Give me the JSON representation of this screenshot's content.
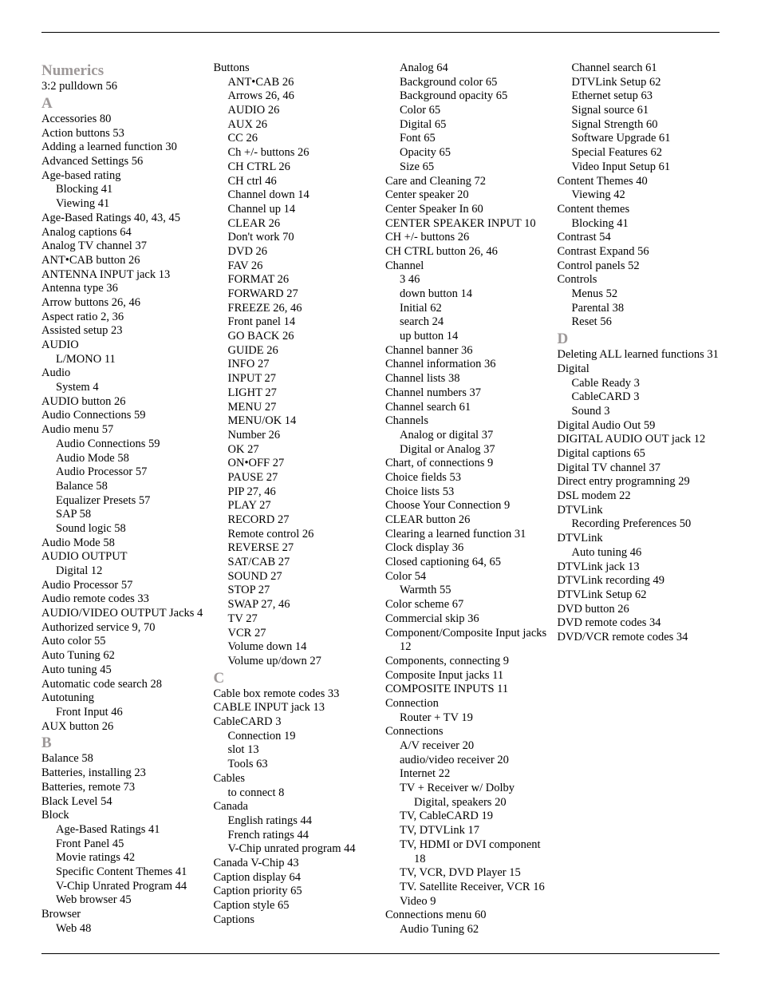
{
  "sections": [
    {
      "head": "Numerics",
      "lines": [
        {
          "t": "3:2 pulldown  56"
        }
      ]
    },
    {
      "head": "A",
      "lines": [
        {
          "t": "Accessories   80"
        },
        {
          "t": "Action buttons  53"
        },
        {
          "t": "Adding a learned function  30"
        },
        {
          "t": "Advanced Settings  56"
        },
        {
          "t": "Age-based rating"
        },
        {
          "t": "Blocking  41",
          "s": 1
        },
        {
          "t": "Viewing  41",
          "s": 1
        },
        {
          "t": "Age-Based Ratings  40, 43, 45"
        },
        {
          "t": "Analog captions  64"
        },
        {
          "t": "Analog TV channel  37"
        },
        {
          "t": "ANT•CAB button  26"
        },
        {
          "t": "ANTENNA INPUT jack  13"
        },
        {
          "t": "Antenna type  36"
        },
        {
          "t": "Arrow buttons  26, 46"
        },
        {
          "t": "Aspect ratio  2, 36"
        },
        {
          "t": "Assisted setup  23"
        },
        {
          "t": "AUDIO"
        },
        {
          "t": "L/MONO  11",
          "s": 1
        },
        {
          "t": "Audio"
        },
        {
          "t": "System  4",
          "s": 1
        },
        {
          "t": "AUDIO button  26"
        },
        {
          "t": "Audio Connections  59"
        },
        {
          "t": "Audio menu  57"
        },
        {
          "t": "Audio Connections  59",
          "s": 1
        },
        {
          "t": "Audio Mode  58",
          "s": 1
        },
        {
          "t": "Audio Processor  57",
          "s": 1
        },
        {
          "t": "Balance  58",
          "s": 1
        },
        {
          "t": "Equalizer Presets  57",
          "s": 1
        },
        {
          "t": "SAP  58",
          "s": 1
        },
        {
          "t": "Sound logic  58",
          "s": 1
        },
        {
          "t": "Audio Mode  58"
        },
        {
          "t": "AUDIO OUTPUT"
        },
        {
          "t": "Digital  12",
          "s": 1
        },
        {
          "t": "Audio Processor  57"
        },
        {
          "t": "Audio remote codes  33"
        },
        {
          "t": "AUDIO/VIDEO OUTPUT Jacks  4"
        },
        {
          "t": "Authorized service  9, 70"
        },
        {
          "t": "Auto color  55"
        },
        {
          "t": "Auto Tuning  62"
        },
        {
          "t": "Auto tuning  45"
        },
        {
          "t": "Automatic code search  28"
        },
        {
          "t": "Autotuning"
        },
        {
          "t": "Front Input  46",
          "s": 1
        },
        {
          "t": "AUX button  26"
        }
      ]
    },
    {
      "head": "B",
      "lines": [
        {
          "t": "Balance  58"
        },
        {
          "t": "Batteries, installing  23"
        },
        {
          "t": "Batteries, remote  73"
        },
        {
          "t": "Black Level  54"
        },
        {
          "t": "Block"
        },
        {
          "t": "Age-Based Ratings  41",
          "s": 1
        },
        {
          "t": "Front Panel  45",
          "s": 1
        },
        {
          "t": "Movie ratings  42",
          "s": 1
        },
        {
          "t": "Specific Content Themes  41",
          "s": 1
        },
        {
          "t": "V-Chip Unrated Program  44",
          "s": 1
        },
        {
          "t": "Web browser  45",
          "s": 1
        },
        {
          "t": "Browser"
        },
        {
          "t": "Web  48",
          "s": 1
        },
        {
          "t": "Buttons"
        },
        {
          "t": "ANT•CAB  26",
          "s": 1
        },
        {
          "t": "Arrows  26, 46",
          "s": 1
        },
        {
          "t": "AUDIO  26",
          "s": 1
        },
        {
          "t": "AUX  26",
          "s": 1
        },
        {
          "t": "CC  26",
          "s": 1
        },
        {
          "t": "Ch +/- buttons  26",
          "s": 1
        },
        {
          "t": "CH CTRL  26",
          "s": 1
        },
        {
          "t": "CH ctrl  46",
          "s": 1
        },
        {
          "t": "Channel down  14",
          "s": 1
        },
        {
          "t": "Channel up  14",
          "s": 1
        },
        {
          "t": "CLEAR  26",
          "s": 1
        },
        {
          "t": "Don't work  70",
          "s": 1
        },
        {
          "t": "DVD  26",
          "s": 1
        },
        {
          "t": "FAV  26",
          "s": 1
        },
        {
          "t": "FORMAT  26",
          "s": 1
        },
        {
          "t": "FORWARD  27",
          "s": 1
        },
        {
          "t": "FREEZE  26, 46",
          "s": 1
        },
        {
          "t": "Front panel  14",
          "s": 1
        },
        {
          "t": "GO BACK  26",
          "s": 1
        },
        {
          "t": "GUIDE  26",
          "s": 1
        },
        {
          "t": "INFO  27",
          "s": 1
        },
        {
          "t": "INPUT  27",
          "s": 1
        },
        {
          "t": "LIGHT  27",
          "s": 1
        },
        {
          "t": "MENU  27",
          "s": 1
        },
        {
          "t": "MENU/OK  14",
          "s": 1
        },
        {
          "t": "Number  26",
          "s": 1
        },
        {
          "t": "OK  27",
          "s": 1
        },
        {
          "t": "ON•OFF  27",
          "s": 1
        },
        {
          "t": "PAUSE  27",
          "s": 1
        },
        {
          "t": "PIP  27, 46",
          "s": 1
        },
        {
          "t": "PLAY  27",
          "s": 1
        },
        {
          "t": "RECORD  27",
          "s": 1
        },
        {
          "t": "Remote control  26",
          "s": 1
        },
        {
          "t": "REVERSE  27",
          "s": 1
        },
        {
          "t": "SAT/CAB  27",
          "s": 1
        },
        {
          "t": "SOUND  27",
          "s": 1
        },
        {
          "t": "STOP  27",
          "s": 1
        },
        {
          "t": "SWAP  27, 46",
          "s": 1
        },
        {
          "t": "TV  27",
          "s": 1
        },
        {
          "t": "VCR  27",
          "s": 1
        },
        {
          "t": "Volume down  14",
          "s": 1
        },
        {
          "t": "Volume up/down  27",
          "s": 1
        }
      ]
    },
    {
      "head": "C",
      "lines": [
        {
          "t": "Cable box remote codes  33"
        },
        {
          "t": "CABLE INPUT jack  13"
        },
        {
          "t": "CableCARD  3"
        },
        {
          "t": "Connection  19",
          "s": 1
        },
        {
          "t": "slot  13",
          "s": 1
        },
        {
          "t": "Tools  63",
          "s": 1
        },
        {
          "t": "Cables"
        },
        {
          "t": "to connect  8",
          "s": 1
        },
        {
          "t": "Canada"
        },
        {
          "t": "English ratings  44",
          "s": 1
        },
        {
          "t": "French ratings  44",
          "s": 1
        },
        {
          "t": "V-Chip unrated program  44",
          "s": 1
        },
        {
          "t": "Canada V-Chip  43"
        },
        {
          "t": "Caption display  64"
        },
        {
          "t": "Caption priority  65"
        },
        {
          "t": "Caption style  65"
        },
        {
          "t": "Captions"
        },
        {
          "t": "Analog  64",
          "s": 1
        },
        {
          "t": "Background color  65",
          "s": 1
        },
        {
          "t": "Background opacity  65",
          "s": 1
        },
        {
          "t": "Color  65",
          "s": 1
        },
        {
          "t": "Digital  65",
          "s": 1
        },
        {
          "t": "Font  65",
          "s": 1
        },
        {
          "t": "Opacity  65",
          "s": 1
        },
        {
          "t": "Size  65",
          "s": 1
        },
        {
          "t": "Care and Cleaning  72"
        },
        {
          "t": "Center speaker  20"
        },
        {
          "t": "Center Speaker In  60"
        },
        {
          "t": "CENTER SPEAKER INPUT  10"
        },
        {
          "t": "CH +/- buttons  26"
        },
        {
          "t": "CH CTRL button  26, 46"
        },
        {
          "t": "Channel"
        },
        {
          "t": "3  46",
          "s": 1
        },
        {
          "t": "down button  14",
          "s": 1
        },
        {
          "t": "Initial  62",
          "s": 1
        },
        {
          "t": "search  24",
          "s": 1
        },
        {
          "t": "up button  14",
          "s": 1
        },
        {
          "t": "Channel banner  36"
        },
        {
          "t": "Channel information  36"
        },
        {
          "t": "Channel lists  38"
        },
        {
          "t": "Channel numbers  37"
        },
        {
          "t": "Channel search  61"
        },
        {
          "t": "Channels"
        },
        {
          "t": "Analog or digital  37",
          "s": 1
        },
        {
          "t": "Digital or Analog  37",
          "s": 1
        },
        {
          "t": "Chart, of connections  9"
        },
        {
          "t": "Choice fields  53"
        },
        {
          "t": "Choice lists  53"
        },
        {
          "t": "Choose Your Connection  9"
        },
        {
          "t": "CLEAR button  26"
        },
        {
          "t": "Clearing a learned function  31"
        },
        {
          "t": "Clock display  36"
        },
        {
          "t": "Closed captioning  64, 65"
        },
        {
          "t": "Color  54"
        },
        {
          "t": "Warmth  55",
          "s": 1
        },
        {
          "t": "Color scheme  67"
        },
        {
          "t": "Commercial skip  36"
        },
        {
          "t": "Component/Composite Input jacks  12"
        },
        {
          "t": "Components, connecting  9"
        },
        {
          "t": "Composite Input jacks  11"
        },
        {
          "t": "COMPOSITE INPUTS  11"
        },
        {
          "t": "Connection"
        },
        {
          "t": "Router + TV  19",
          "s": 1
        },
        {
          "t": "Connections"
        },
        {
          "t": "A/V receiver  20",
          "s": 1
        },
        {
          "t": "audio/video receiver  20",
          "s": 1
        },
        {
          "t": "Internet  22",
          "s": 1
        },
        {
          "t": "TV + Receiver w/ Dolby Digital, speakers  20",
          "s": 1
        },
        {
          "t": "TV, CableCARD  19",
          "s": 1
        },
        {
          "t": "TV, DTVLink  17",
          "s": 1
        },
        {
          "t": "TV, HDMI or DVI component  18",
          "s": 1
        },
        {
          "t": "TV, VCR, DVD Player  15",
          "s": 1
        },
        {
          "t": "TV. Satellite Receiver, VCR  16",
          "s": 1
        },
        {
          "t": "Video  9",
          "s": 1
        },
        {
          "t": "Connections menu  60"
        },
        {
          "t": "Audio Tuning  62",
          "s": 1
        },
        {
          "t": "Channel search  61",
          "s": 1
        },
        {
          "t": "DTVLink Setup  62",
          "s": 1
        },
        {
          "t": "Ethernet setup  63",
          "s": 1
        },
        {
          "t": "Signal source  61",
          "s": 1
        },
        {
          "t": "Signal Strength  60",
          "s": 1
        },
        {
          "t": "Software Upgrade  61",
          "s": 1
        },
        {
          "t": "Special Features  62",
          "s": 1
        },
        {
          "t": "Video Input Setup  61",
          "s": 1
        },
        {
          "t": "Content Themes  40"
        },
        {
          "t": "Viewing  42",
          "s": 1
        },
        {
          "t": "Content themes"
        },
        {
          "t": "Blocking  41",
          "s": 1
        },
        {
          "t": "Contrast  54"
        },
        {
          "t": "Contrast Expand  56"
        },
        {
          "t": "Control panels  52"
        },
        {
          "t": "Controls"
        },
        {
          "t": "Menus  52",
          "s": 1
        },
        {
          "t": "Parental  38",
          "s": 1
        },
        {
          "t": "Reset  56",
          "s": 1
        }
      ]
    },
    {
      "head": "D",
      "lines": [
        {
          "t": "Deleting ALL learned functions  31"
        },
        {
          "t": "Digital"
        },
        {
          "t": "Cable Ready  3",
          "s": 1
        },
        {
          "t": "CableCARD  3",
          "s": 1
        },
        {
          "t": "Sound  3",
          "s": 1
        },
        {
          "t": "Digital Audio Out  59"
        },
        {
          "t": "DIGITAL AUDIO OUT jack  12"
        },
        {
          "t": "Digital captions  65"
        },
        {
          "t": "Digital TV channel  37"
        },
        {
          "t": "Direct entry programning  29"
        },
        {
          "t": "DSL modem  22"
        },
        {
          "t": "DTVLink"
        },
        {
          "t": "Recording Preferences  50",
          "s": 1
        },
        {
          "t": "DTVLink"
        },
        {
          "t": "Auto tuning  46",
          "s": 1
        },
        {
          "t": "DTVLink jack  13"
        },
        {
          "t": "DTVLink recording  49"
        },
        {
          "t": "DTVLink Setup  62"
        },
        {
          "t": "DVD button  26"
        },
        {
          "t": "DVD remote codes  34"
        },
        {
          "t": "DVD/VCR remote codes  34"
        }
      ]
    }
  ]
}
